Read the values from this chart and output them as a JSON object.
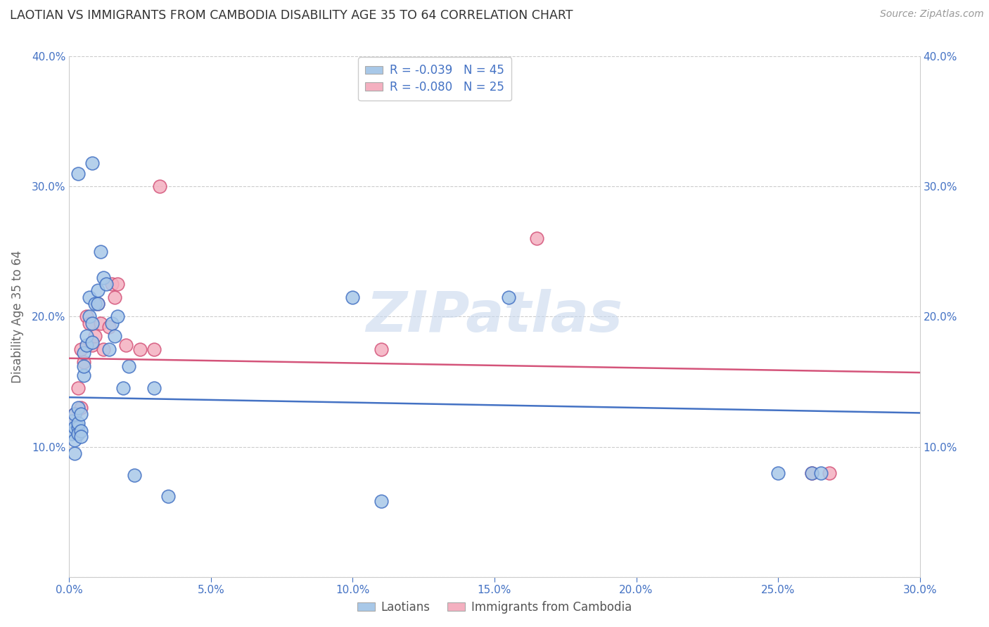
{
  "title": "LAOTIAN VS IMMIGRANTS FROM CAMBODIA DISABILITY AGE 35 TO 64 CORRELATION CHART",
  "source": "Source: ZipAtlas.com",
  "ylabel_label": "Disability Age 35 to 64",
  "xlim": [
    0,
    0.3
  ],
  "ylim": [
    0,
    0.4
  ],
  "legend_label1": "Laotians",
  "legend_label2": "Immigrants from Cambodia",
  "R1": "-0.039",
  "N1": "45",
  "R2": "-0.080",
  "N2": "25",
  "color1": "#a8c8e8",
  "color2": "#f4b0c0",
  "line_color1": "#4472c4",
  "line_color2": "#d4547a",
  "watermark": "ZIPatlas",
  "blue_scatter_x": [
    0.001,
    0.001,
    0.002,
    0.002,
    0.002,
    0.002,
    0.003,
    0.003,
    0.003,
    0.003,
    0.004,
    0.004,
    0.004,
    0.005,
    0.005,
    0.005,
    0.006,
    0.006,
    0.007,
    0.007,
    0.008,
    0.008,
    0.009,
    0.01,
    0.01,
    0.011,
    0.012,
    0.013,
    0.014,
    0.015,
    0.016,
    0.017,
    0.019,
    0.021,
    0.023,
    0.03,
    0.035,
    0.1,
    0.11,
    0.155,
    0.25,
    0.262,
    0.265,
    0.003,
    0.008
  ],
  "blue_scatter_y": [
    0.12,
    0.11,
    0.115,
    0.105,
    0.095,
    0.125,
    0.13,
    0.115,
    0.11,
    0.118,
    0.125,
    0.112,
    0.108,
    0.155,
    0.162,
    0.172,
    0.178,
    0.185,
    0.2,
    0.215,
    0.18,
    0.195,
    0.21,
    0.21,
    0.22,
    0.25,
    0.23,
    0.225,
    0.175,
    0.195,
    0.185,
    0.2,
    0.145,
    0.162,
    0.078,
    0.145,
    0.062,
    0.215,
    0.058,
    0.215,
    0.08,
    0.08,
    0.08,
    0.31,
    0.318
  ],
  "pink_scatter_x": [
    0.001,
    0.002,
    0.003,
    0.004,
    0.004,
    0.005,
    0.006,
    0.007,
    0.008,
    0.009,
    0.01,
    0.011,
    0.012,
    0.014,
    0.015,
    0.016,
    0.017,
    0.02,
    0.025,
    0.03,
    0.032,
    0.11,
    0.165,
    0.262,
    0.268
  ],
  "pink_scatter_y": [
    0.12,
    0.125,
    0.145,
    0.13,
    0.175,
    0.165,
    0.2,
    0.195,
    0.178,
    0.185,
    0.21,
    0.195,
    0.175,
    0.192,
    0.225,
    0.215,
    0.225,
    0.178,
    0.175,
    0.175,
    0.3,
    0.175,
    0.26,
    0.08,
    0.08
  ],
  "blue_line_x": [
    0.0,
    0.3
  ],
  "blue_line_y": [
    0.138,
    0.126
  ],
  "pink_line_x": [
    0.0,
    0.3
  ],
  "pink_line_y": [
    0.168,
    0.157
  ]
}
